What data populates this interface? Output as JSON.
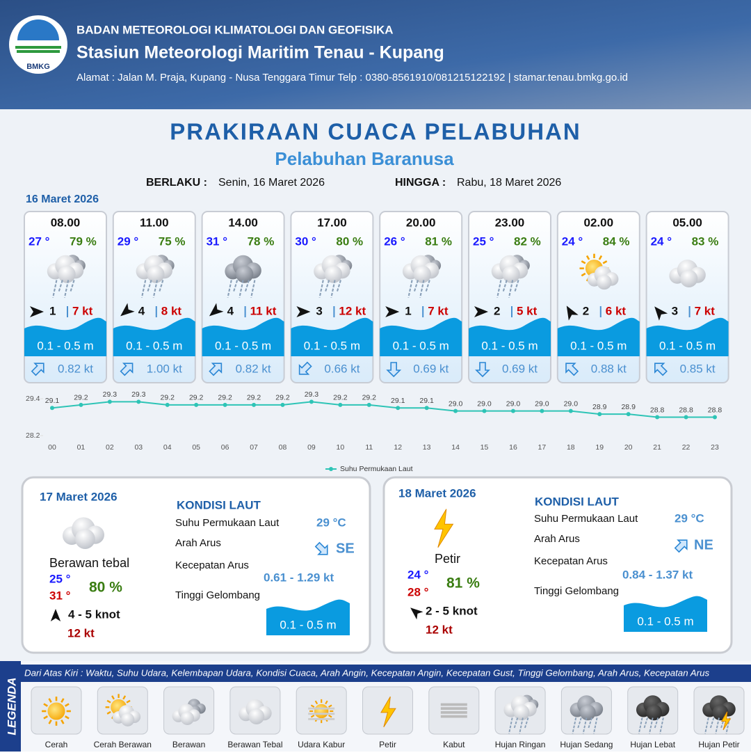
{
  "header": {
    "logo": "BMKG",
    "agency": "BADAN METEOROLOGI KLIMATOLOGI DAN GEOFISIKA",
    "station": "Stasiun Meteorologi Maritim Tenau - Kupang",
    "address": "Alamat : Jalan M. Praja, Kupang - Nusa Tenggara Timur Telp : 0380-8561910/081215122192  | stamar.tenau.bmkg.go.id"
  },
  "title": "PRAKIRAAN CUACA PELABUHAN",
  "subtitle": "Pelabuhan Baranusa",
  "validity": {
    "from_label": "BERLAKU :",
    "from": "Senin, 16 Maret 2026",
    "to_label": "HINGGA :",
    "to": "Rabu, 18 Maret 2026"
  },
  "day1": {
    "date": "16 Maret 2026",
    "slots": [
      {
        "time": "08.00",
        "temp": "27 °",
        "humidity": "79 %",
        "wind": "1",
        "gust": "7 kt",
        "wave": "0.1 - 0.5 m",
        "current": "0.82 kt"
      },
      {
        "time": "11.00",
        "temp": "29 °",
        "humidity": "75 %",
        "wind": "4",
        "gust": "8 kt",
        "wave": "0.1 - 0.5 m",
        "current": "1.00 kt"
      },
      {
        "time": "14.00",
        "temp": "31 °",
        "humidity": "78 %",
        "wind": "4",
        "gust": "11 kt",
        "wave": "0.1 - 0.5 m",
        "current": "0.82 kt"
      },
      {
        "time": "17.00",
        "temp": "30 °",
        "humidity": "80 %",
        "wind": "3",
        "gust": "12 kt",
        "wave": "0.1 - 0.5 m",
        "current": "0.66 kt"
      },
      {
        "time": "20.00",
        "temp": "26 °",
        "humidity": "81 %",
        "wind": "1",
        "gust": "7 kt",
        "wave": "0.1 - 0.5 m",
        "current": "0.69 kt"
      },
      {
        "time": "23.00",
        "temp": "25 °",
        "humidity": "82 %",
        "wind": "2",
        "gust": "5 kt",
        "wave": "0.1 - 0.5 m",
        "current": "0.69 kt"
      },
      {
        "time": "02.00",
        "temp": "24 °",
        "humidity": "84 %",
        "wind": "2",
        "gust": "6 kt",
        "wave": "0.1 - 0.5 m",
        "current": "0.88 kt"
      },
      {
        "time": "05.00",
        "temp": "24 °",
        "humidity": "83 %",
        "wind": "3",
        "gust": "7 kt",
        "wave": "0.1 - 0.5 m",
        "current": "0.85 kt"
      }
    ]
  },
  "chart_data": {
    "type": "line",
    "categories": [
      "00",
      "01",
      "02",
      "03",
      "04",
      "05",
      "06",
      "07",
      "08",
      "09",
      "10",
      "11",
      "12",
      "13",
      "14",
      "15",
      "16",
      "17",
      "18",
      "19",
      "20",
      "21",
      "22",
      "23"
    ],
    "series": [
      {
        "name": "Suhu Permukaan Laut",
        "color": "#2ec4b6",
        "values": [
          29.1,
          29.2,
          29.3,
          29.3,
          29.2,
          29.2,
          29.2,
          29.2,
          29.2,
          29.3,
          29.2,
          29.2,
          29.1,
          29.1,
          29.0,
          29.0,
          29.0,
          29.0,
          29.0,
          28.9,
          28.9,
          28.8,
          28.8,
          28.8
        ],
        "value_labels": [
          "29.1",
          "29.2",
          "29.3",
          "29.3",
          "29.2",
          "29.2",
          "29.2",
          "29.2",
          "29.2",
          "29.3",
          "29.2",
          "29.2",
          "29.1",
          "29.1",
          "29.0",
          "29.0",
          "29.0",
          "29.0",
          "29.0",
          "28.9",
          "28.9",
          "28.8",
          "28.8",
          "28.8"
        ]
      }
    ],
    "ylim": [
      28.2,
      29.4
    ],
    "yticks": [
      28.2,
      29.4
    ],
    "legend": "bottom"
  },
  "days": [
    {
      "date": "17 Maret 2026",
      "condition": "Berawan tebal",
      "temp_min": "25 °",
      "temp_max": "31 °",
      "humidity": "80 %",
      "wind": "4  - 5 knot",
      "gust": "12 kt",
      "sea": {
        "title": "KONDISI LAUT",
        "sst_label": "Suhu Permukaan Laut",
        "sst": "29 °C",
        "dir_label": "Arah Arus",
        "dir": "SE",
        "speed_label": "Kecepatan Arus",
        "speed": "0.61 - 1.29 kt",
        "wave_label": "Tinggi Gelombang",
        "wave": "0.1 - 0.5 m"
      }
    },
    {
      "date": "18 Maret 2026",
      "condition": "Petir",
      "temp_min": "24 °",
      "temp_max": "28 °",
      "humidity": "81 %",
      "wind": "2 - 5 knot",
      "gust": "12 kt",
      "sea": {
        "title": "KONDISI LAUT",
        "sst_label": "Suhu Permukaan Laut",
        "sst": "29 °C",
        "dir_label": "Arah Arus",
        "dir": "NE",
        "speed_label": "Kecepatan Arus",
        "speed": "0.84 - 1.37 kt",
        "wave_label": "Tinggi Gelombang",
        "wave": "0.1 - 0.5 m"
      }
    }
  ],
  "legend": {
    "title": "LEGENDA",
    "description": "Dari Atas Kiri : Waktu, Suhu Udara, Kelembapan Udara, Kondisi Cuaca, Arah Angin, Kecepatan Angin, Kecepatan Gust, Tinggi Gelombang, Arah Arus, Kecepatan Arus",
    "items": [
      "Cerah",
      "Cerah Berawan",
      "Berawan",
      "Berawan Tebal",
      "Udara Kabur",
      "Petir",
      "Kabut",
      "Hujan Ringan",
      "Hujan Sedang",
      "Hujan Lebat",
      "Hujan Petir"
    ]
  }
}
